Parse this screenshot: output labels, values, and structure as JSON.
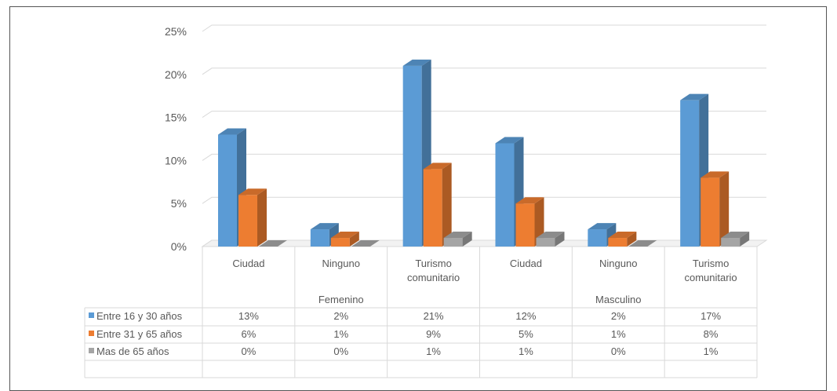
{
  "chart_data": {
    "type": "bar",
    "title": "",
    "xlabel": "",
    "ylabel": "",
    "ylim": [
      0,
      25
    ],
    "yticks": [
      "0%",
      "5%",
      "10%",
      "15%",
      "20%",
      "25%"
    ],
    "groups": [
      "Femenino",
      "Masculino"
    ],
    "categories": [
      "Ciudad",
      "Ninguno",
      "Turismo comunitario",
      "Ciudad",
      "Ninguno",
      "Turismo comunitario"
    ],
    "series": [
      {
        "name": "Entre 16 y 30 años",
        "color": "#5b9bd5",
        "values": [
          13,
          2,
          21,
          12,
          2,
          17
        ],
        "labels": [
          "13%",
          "2%",
          "21%",
          "12%",
          "2%",
          "17%"
        ]
      },
      {
        "name": "Entre 31 y 65 años",
        "color": "#ed7d31",
        "values": [
          6,
          1,
          9,
          5,
          1,
          8
        ],
        "labels": [
          "6%",
          "1%",
          "9%",
          "5%",
          "1%",
          "8%"
        ]
      },
      {
        "name": "Mas de 65 años",
        "color": "#a5a5a5",
        "values": [
          0,
          0,
          1,
          1,
          0,
          1
        ],
        "labels": [
          "0%",
          "0%",
          "1%",
          "1%",
          "0%",
          "1%"
        ]
      }
    ],
    "legend": "data-table",
    "grid": true
  }
}
